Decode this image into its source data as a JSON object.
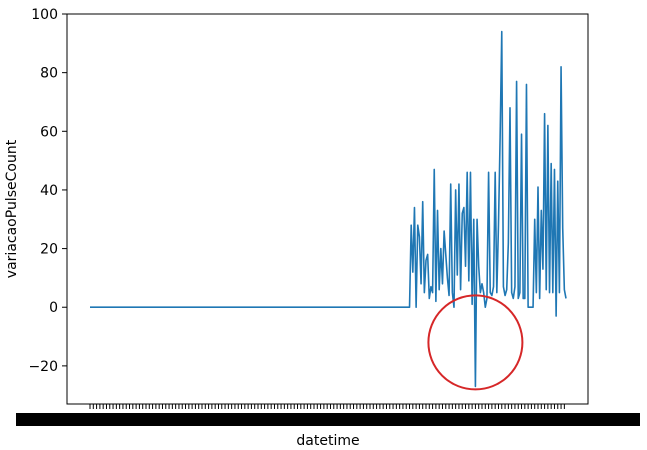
{
  "chart_data": {
    "type": "line",
    "title": "",
    "xlabel": "datetime",
    "ylabel": "variacaoPulseCount",
    "ylim": [
      -33,
      100
    ],
    "yticks": [
      -20,
      0,
      20,
      40,
      60,
      80,
      100
    ],
    "grid": false,
    "legend": "none",
    "line_color": "#1f77b4",
    "annotation": {
      "shape": "circle",
      "color": "#d62728",
      "center_value": -12
    },
    "series": [
      {
        "values": [
          0,
          0,
          0,
          0,
          0,
          0,
          0,
          0,
          0,
          0,
          0,
          0,
          0,
          0,
          0,
          0,
          0,
          0,
          0,
          0,
          0,
          0,
          0,
          0,
          0,
          0,
          0,
          0,
          0,
          0,
          0,
          0,
          0,
          0,
          0,
          0,
          0,
          0,
          0,
          0,
          0,
          0,
          0,
          0,
          0,
          0,
          0,
          0,
          0,
          0,
          0,
          0,
          0,
          0,
          0,
          0,
          0,
          0,
          0,
          0,
          0,
          0,
          0,
          0,
          0,
          0,
          0,
          0,
          0,
          0,
          0,
          0,
          0,
          0,
          0,
          0,
          0,
          0,
          0,
          0,
          0,
          0,
          0,
          0,
          0,
          0,
          0,
          0,
          0,
          0,
          0,
          0,
          0,
          0,
          0,
          0,
          0,
          0,
          0,
          0,
          0,
          0,
          0,
          0,
          0,
          0,
          0,
          0,
          0,
          0,
          0,
          0,
          0,
          0,
          0,
          0,
          0,
          0,
          0,
          0,
          0,
          0,
          0,
          0,
          0,
          0,
          0,
          0,
          0,
          0,
          0,
          0,
          0,
          0,
          0,
          0,
          0,
          0,
          0,
          0,
          0,
          0,
          0,
          0,
          0,
          0,
          0,
          0,
          0,
          0,
          0,
          0,
          0,
          0,
          0,
          0,
          0,
          0,
          0,
          0,
          0,
          0,
          0,
          0,
          0,
          0,
          0,
          0,
          0,
          0,
          0,
          0,
          0,
          0,
          0,
          0,
          0,
          0,
          0,
          0,
          0,
          0,
          0,
          0,
          0,
          0,
          0,
          0,
          0,
          0,
          0,
          0,
          0,
          0,
          0,
          28,
          12,
          34,
          0,
          28,
          24,
          8,
          36,
          5,
          16,
          18,
          3,
          7,
          5,
          47,
          2,
          33,
          6,
          20,
          8,
          26,
          18,
          10,
          4,
          42,
          5,
          0,
          40,
          11,
          42,
          6,
          32,
          34,
          14,
          46,
          9,
          46,
          1,
          30,
          -27,
          30,
          14,
          5,
          8,
          5,
          0,
          3,
          46,
          5,
          4,
          7,
          46,
          5,
          28,
          58,
          94,
          7,
          4,
          6,
          22,
          68,
          5,
          3,
          7,
          77,
          3,
          5,
          59,
          3,
          3,
          76,
          0,
          0,
          0,
          0,
          30,
          5,
          41,
          3,
          33,
          13,
          66,
          6,
          62,
          5,
          49,
          5,
          47,
          -3,
          43,
          5,
          82,
          27,
          6,
          3
        ]
      }
    ]
  }
}
